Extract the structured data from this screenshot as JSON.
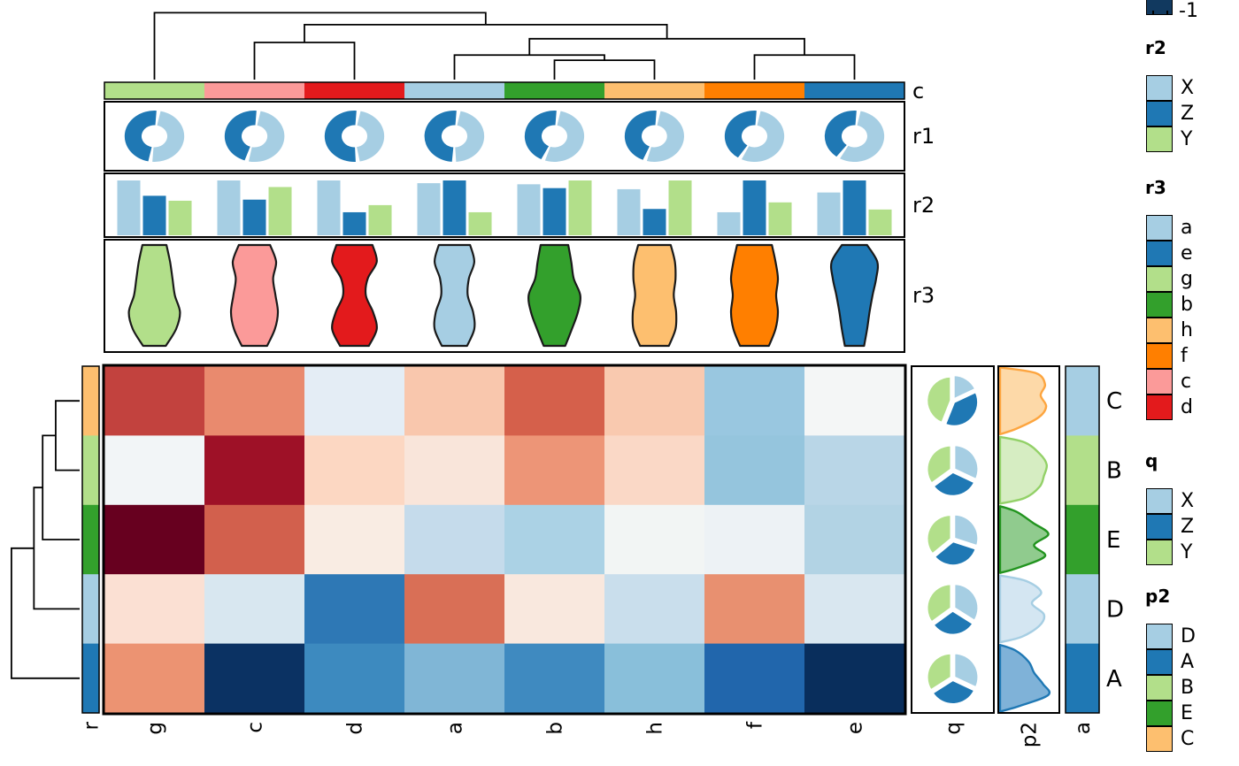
{
  "panel_labels": {
    "c": "c",
    "r1": "r1",
    "r2": "r2",
    "r3": "r3"
  },
  "axis": {
    "column_labels": [
      "g",
      "c",
      "d",
      "a",
      "b",
      "h",
      "f",
      "e"
    ],
    "row_labels": [
      "C",
      "B",
      "E",
      "D",
      "A"
    ],
    "row_bar_label": "r",
    "q_label": "q",
    "p2_label": "p2",
    "a_label": "a"
  },
  "legends": {
    "colorbar": {
      "tick_label": "-1",
      "color": "#11395f"
    },
    "r2": {
      "title": "r2",
      "entries": [
        {
          "label": "X",
          "color": "#a6cee3"
        },
        {
          "label": "Z",
          "color": "#1f78b4"
        },
        {
          "label": "Y",
          "color": "#b2df8a"
        }
      ]
    },
    "r3": {
      "title": "r3",
      "entries": [
        {
          "label": "a",
          "color": "#a6cee3"
        },
        {
          "label": "e",
          "color": "#1f78b4"
        },
        {
          "label": "g",
          "color": "#b2df8a"
        },
        {
          "label": "b",
          "color": "#33a02c"
        },
        {
          "label": "h",
          "color": "#fdbf6f"
        },
        {
          "label": "f",
          "color": "#ff7f00"
        },
        {
          "label": "c",
          "color": "#fb9a99"
        },
        {
          "label": "d",
          "color": "#e31a1c"
        }
      ]
    },
    "q": {
      "title": "q",
      "entries": [
        {
          "label": "X",
          "color": "#a6cee3"
        },
        {
          "label": "Z",
          "color": "#1f78b4"
        },
        {
          "label": "Y",
          "color": "#b2df8a"
        }
      ]
    },
    "p2": {
      "title": "p2",
      "entries": [
        {
          "label": "D",
          "color": "#a6cee3"
        },
        {
          "label": "A",
          "color": "#1f78b4"
        },
        {
          "label": "B",
          "color": "#b2df8a"
        },
        {
          "label": "E",
          "color": "#33a02c"
        },
        {
          "label": "C",
          "color": "#fdbf6f"
        }
      ]
    }
  },
  "chart_data": {
    "type": "heatmap",
    "subtype": "clustermap-with-annotations",
    "colormap": "RdBu_r",
    "columns": [
      "g",
      "c",
      "d",
      "a",
      "b",
      "h",
      "f",
      "e"
    ],
    "rows": [
      "C",
      "B",
      "E",
      "D",
      "A"
    ],
    "category_colors": {
      "a": "#a6cee3",
      "e": "#1f78b4",
      "g": "#b2df8a",
      "b": "#33a02c",
      "h": "#fdbf6f",
      "f": "#ff7f00",
      "c": "#fb9a99",
      "d": "#e31a1c"
    },
    "row_category_colors": {
      "C": "#fdbf6f",
      "B": "#b2df8a",
      "E": "#33a02c",
      "D": "#a6cee3",
      "A": "#1f78b4"
    },
    "a_bar_colors": {
      "C": "#a6cee3",
      "B": "#b2df8a",
      "E": "#33a02c",
      "D": "#a6cee3",
      "A": "#1f78b4"
    },
    "cell_colors": [
      [
        "#c2423e",
        "#e98a6e",
        "#e4edf5",
        "#f9c7ad",
        "#d5604b",
        "#f9c9af",
        "#99c7e0",
        "#f4f6f6"
      ],
      [
        "#f2f5f7",
        "#9e1127",
        "#fcd7c2",
        "#f9e5da",
        "#ed9577",
        "#fad8c6",
        "#95c5dd",
        "#b9d6e7"
      ],
      [
        "#67001f",
        "#d2604d",
        "#f9ece3",
        "#c5dbeb",
        "#abd2e5",
        "#f2f5f4",
        "#edf2f5",
        "#b2d3e4"
      ],
      [
        "#fbe0d3",
        "#d8e7f0",
        "#2e78b5",
        "#d96f56",
        "#f9e8de",
        "#c9deec",
        "#e89070",
        "#d9e7f0"
      ],
      [
        "#ec9372",
        "#0b3263",
        "#3d8abf",
        "#80b6d6",
        "#3f8ac0",
        "#89bfda",
        "#2166ac",
        "#092e5c"
      ]
    ],
    "column_dendrogram": {
      "leaves": [
        "g",
        "c",
        "d",
        "a",
        "b",
        "h",
        "f",
        "e"
      ],
      "merges": [
        {
          "a": "L1",
          "b": "L2",
          "h": 0.5
        },
        {
          "a": "L4",
          "b": "L5",
          "h": 0.26
        },
        {
          "a": "L3",
          "b": "M1",
          "h": 0.33
        },
        {
          "a": "L6",
          "b": "L7",
          "h": 0.33
        },
        {
          "a": "M2",
          "b": "M3",
          "h": 0.55
        },
        {
          "a": "M0",
          "b": "M4",
          "h": 0.74
        },
        {
          "a": "L0",
          "b": "M5",
          "h": 0.9
        }
      ]
    },
    "row_dendrogram": {
      "leaves": [
        "C",
        "B",
        "E",
        "D",
        "A"
      ],
      "merges": [
        {
          "a": "L0",
          "b": "L1",
          "h": 0.33
        },
        {
          "a": "M0",
          "b": "L2",
          "h": 0.51
        },
        {
          "a": "M1",
          "b": "L3",
          "h": 0.63
        },
        {
          "a": "M2",
          "b": "L4",
          "h": 0.94
        }
      ]
    },
    "r1_donuts": {
      "dark_color": "#1f78b4",
      "light_color": "#a6cee3",
      "dark_fraction": [
        0.5,
        0.48,
        0.54,
        0.52,
        0.46,
        0.47,
        0.44,
        0.43
      ]
    },
    "r2_bars": {
      "series_colors": [
        "#a6cee3",
        "#1f78b4",
        "#b2df8a"
      ],
      "series_names": [
        "X",
        "Z",
        "Y"
      ],
      "values": [
        [
          1.0,
          0.72,
          0.63
        ],
        [
          1.0,
          0.65,
          0.88
        ],
        [
          1.0,
          0.42,
          0.55
        ],
        [
          0.95,
          1.0,
          0.42
        ],
        [
          0.93,
          0.86,
          1.0
        ],
        [
          0.84,
          0.48,
          1.0
        ],
        [
          0.42,
          1.0,
          0.6
        ],
        [
          0.78,
          1.0,
          0.47
        ]
      ]
    },
    "r3_violins": {
      "colors": [
        "#b2df8a",
        "#fb9a99",
        "#e31a1c",
        "#a6cee3",
        "#33a02c",
        "#fdbf6f",
        "#ff7f00",
        "#1f78b4"
      ],
      "width_profiles": [
        [
          0.4,
          0.52,
          0.6,
          0.68,
          0.85,
          0.72,
          0.38
        ],
        [
          0.52,
          0.72,
          0.62,
          0.7,
          0.78,
          0.68,
          0.42
        ],
        [
          0.6,
          0.74,
          0.44,
          0.38,
          0.62,
          0.74,
          0.48
        ],
        [
          0.52,
          0.66,
          0.48,
          0.44,
          0.62,
          0.66,
          0.42
        ],
        [
          0.46,
          0.56,
          0.64,
          0.86,
          0.78,
          0.58,
          0.36
        ],
        [
          0.54,
          0.68,
          0.7,
          0.64,
          0.72,
          0.7,
          0.48
        ],
        [
          0.58,
          0.7,
          0.78,
          0.72,
          0.78,
          0.7,
          0.48
        ],
        [
          0.42,
          0.76,
          0.72,
          0.6,
          0.5,
          0.42,
          0.32
        ]
      ]
    },
    "q_pies": {
      "slice_colors": [
        "#a6cee3",
        "#1f78b4",
        "#b2df8a"
      ],
      "slice_names": [
        "X",
        "Z",
        "Y"
      ],
      "fractions": [
        [
          0.18,
          0.38,
          0.44
        ],
        [
          0.32,
          0.33,
          0.35
        ],
        [
          0.3,
          0.34,
          0.36
        ],
        [
          0.34,
          0.31,
          0.35
        ],
        [
          0.32,
          0.34,
          0.34
        ]
      ]
    },
    "p2_ridges": {
      "stroke": [
        "#fda53f",
        "#93d168",
        "#22941f",
        "#a6cee3",
        "#1f78b4"
      ],
      "fill": [
        "#fdd9a8",
        "#d6edc2",
        "#90cb8e",
        "#d4e6f2",
        "#7fb2d8"
      ],
      "profiles": [
        [
          0.65,
          0.82,
          0.74,
          0.84,
          0.7,
          0.3
        ],
        [
          0.45,
          0.72,
          0.85,
          0.8,
          0.72,
          0.45
        ],
        [
          0.3,
          0.6,
          0.88,
          0.62,
          0.82,
          0.35
        ],
        [
          0.48,
          0.75,
          0.58,
          0.8,
          0.72,
          0.4
        ],
        [
          0.28,
          0.52,
          0.62,
          0.78,
          0.88,
          0.35
        ]
      ]
    }
  }
}
